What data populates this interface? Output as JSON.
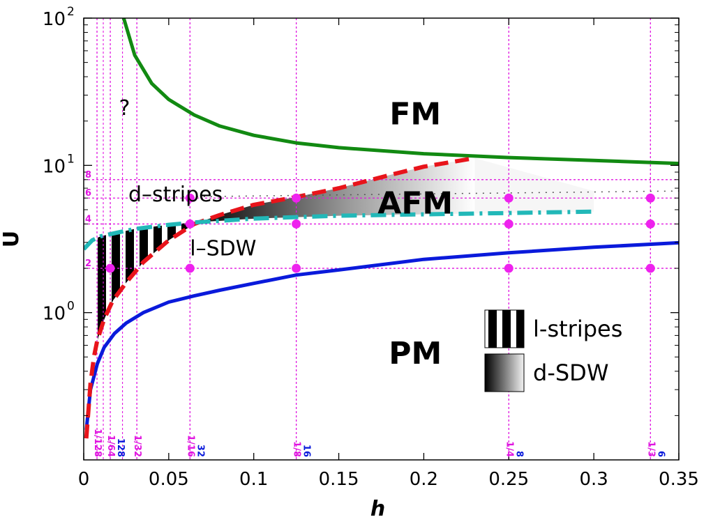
{
  "chart_data": {
    "type": "line",
    "xlabel": "h",
    "ylabel": "U",
    "xlim": [
      0,
      0.35
    ],
    "ylim": [
      0.1,
      100
    ],
    "yscale": "log",
    "x_ticks": [
      {
        "v": 0,
        "label": "0"
      },
      {
        "v": 0.05,
        "label": "0.05"
      },
      {
        "v": 0.1,
        "label": "0.1"
      },
      {
        "v": 0.15,
        "label": "0.15"
      },
      {
        "v": 0.2,
        "label": "0.2"
      },
      {
        "v": 0.25,
        "label": "0.25"
      },
      {
        "v": 0.3,
        "label": "0.3"
      },
      {
        "v": 0.35,
        "label": "0.35"
      }
    ],
    "y_ticks": [
      {
        "v": 1,
        "base": "10",
        "exp": "0"
      },
      {
        "v": 10,
        "base": "10",
        "exp": "1"
      },
      {
        "v": 100,
        "base": "10",
        "exp": "2"
      }
    ],
    "series": [
      {
        "color": "#128a12",
        "style": "solid",
        "x": [
          0.0235,
          0.03,
          0.04,
          0.05,
          0.065,
          0.08,
          0.1,
          0.125,
          0.15,
          0.2,
          0.25,
          0.3,
          0.35
        ],
        "y": [
          100,
          56,
          36,
          28,
          22,
          18.5,
          16,
          14.2,
          13.2,
          12,
          11.3,
          10.8,
          10.3
        ]
      },
      {
        "color": "#0a1adb",
        "style": "solid",
        "x": [
          0.0015,
          0.004,
          0.008,
          0.012,
          0.018,
          0.025,
          0.035,
          0.05,
          0.065,
          0.08,
          0.1,
          0.125,
          0.15,
          0.2,
          0.25,
          0.3,
          0.35
        ],
        "y": [
          0.16,
          0.3,
          0.45,
          0.58,
          0.72,
          0.85,
          1.0,
          1.18,
          1.3,
          1.42,
          1.58,
          1.8,
          1.95,
          2.3,
          2.55,
          2.78,
          2.98
        ]
      },
      {
        "color": "#e8141b",
        "style": "dashed",
        "x": [
          0.0015,
          0.004,
          0.006,
          0.008,
          0.012,
          0.017,
          0.025,
          0.035,
          0.05,
          0.065,
          0.08,
          0.1,
          0.125,
          0.15,
          0.18,
          0.2,
          0.23
        ],
        "y": [
          0.14,
          0.33,
          0.5,
          0.65,
          0.9,
          1.2,
          1.6,
          2.2,
          3.1,
          4.0,
          4.6,
          5.4,
          6.1,
          7.0,
          8.6,
          9.8,
          11.2
        ]
      },
      {
        "color": "#22b8b8",
        "style": "dashdot",
        "x": [
          0.0,
          0.005,
          0.01,
          0.02,
          0.03,
          0.05,
          0.065,
          0.08,
          0.1,
          0.15,
          0.2,
          0.25,
          0.3
        ],
        "y": [
          2.7,
          3.1,
          3.3,
          3.5,
          3.7,
          3.95,
          4.1,
          4.2,
          4.35,
          4.55,
          4.65,
          4.75,
          4.85
        ]
      },
      {
        "color": "#555555",
        "style": "dotted",
        "x": [
          0.05,
          0.1,
          0.15,
          0.2,
          0.25,
          0.3,
          0.35
        ],
        "y": [
          6.1,
          6.2,
          6.3,
          6.4,
          6.5,
          6.6,
          6.7
        ]
      }
    ],
    "vertical_grid": [
      {
        "x": 0.0078125,
        "label": "1/128",
        "label2": "",
        "color": "#e014e0"
      },
      {
        "x": 0.015625,
        "label": "1/64",
        "label2": "128",
        "color": "#e014e0"
      },
      {
        "x": 0.03125,
        "label": "1/32",
        "label2": "",
        "color": "#e014e0"
      },
      {
        "x": 0.0625,
        "label": "1/16",
        "label2": "32",
        "color": "#e014e0"
      },
      {
        "x": 0.125,
        "label": "1/8",
        "label2": "16",
        "color": "#e014e0"
      },
      {
        "x": 0.25,
        "label": "1/4",
        "label2": "8",
        "color": "#e014e0"
      },
      {
        "x": 0.3333,
        "label": "1/3",
        "label2": "6",
        "color": "#e014e0"
      }
    ],
    "horizontal_grid": [
      {
        "y": 2,
        "label": "2"
      },
      {
        "y": 4,
        "label": "4"
      },
      {
        "y": 6,
        "label": "6"
      },
      {
        "y": 8,
        "label": "8"
      }
    ],
    "points": [
      {
        "x": 0.0156,
        "y": 2
      },
      {
        "x": 0.0625,
        "y": 2
      },
      {
        "x": 0.125,
        "y": 2
      },
      {
        "x": 0.25,
        "y": 2
      },
      {
        "x": 0.3333,
        "y": 2
      },
      {
        "x": 0.0625,
        "y": 4
      },
      {
        "x": 0.125,
        "y": 4
      },
      {
        "x": 0.25,
        "y": 4
      },
      {
        "x": 0.3333,
        "y": 4
      },
      {
        "x": 0.0625,
        "y": 6
      },
      {
        "x": 0.125,
        "y": 6
      },
      {
        "x": 0.25,
        "y": 6
      },
      {
        "x": 0.3333,
        "y": 6
      }
    ],
    "annotations": [
      {
        "text": "FM",
        "x": 0.195,
        "y": 19,
        "kind": "region"
      },
      {
        "text": "AFM",
        "x": 0.195,
        "y": 4.7,
        "kind": "region"
      },
      {
        "text": "PM",
        "x": 0.195,
        "y": 0.45,
        "kind": "region"
      },
      {
        "text": "?",
        "x": 0.024,
        "y": 22,
        "kind": "small"
      },
      {
        "text": "d–stripes",
        "x": 0.054,
        "y": 5.7,
        "kind": "small"
      },
      {
        "text": "l–SDW",
        "x": 0.082,
        "y": 2.45,
        "kind": "small"
      }
    ],
    "legend": [
      {
        "label": "l-stripes",
        "pattern": "stripes"
      },
      {
        "label": "d-SDW",
        "pattern": "gradient"
      }
    ],
    "colors": {
      "grid": "#e014e0",
      "blue_label": "#0a1adb",
      "points": "#ee22ee"
    }
  }
}
